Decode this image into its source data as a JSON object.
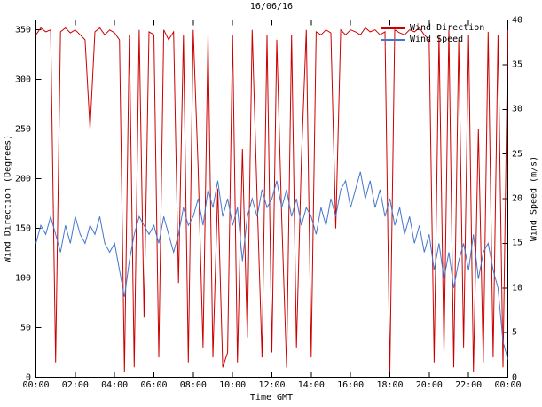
{
  "colors": {
    "background": "#ffffff",
    "border": "#000000",
    "wind_direction": "#cc0000",
    "wind_speed": "#4477cc"
  },
  "chart_data": {
    "type": "line",
    "title": "16/06/16",
    "xlabel": "Time GMT",
    "ylabel_left": "Wind Direction (Degrees)",
    "ylabel_right": "Wind Speed (m/s)",
    "grid": false,
    "legend_position": "top-right",
    "x_range": [
      0,
      24
    ],
    "x_tick_labels": [
      "00:00",
      "02:00",
      "04:00",
      "06:00",
      "08:00",
      "10:00",
      "12:00",
      "14:00",
      "16:00",
      "18:00",
      "20:00",
      "22:00",
      "00:00"
    ],
    "left_axis": {
      "range": [
        0,
        360
      ],
      "ticks": [
        0,
        50,
        100,
        150,
        200,
        250,
        300,
        350
      ]
    },
    "right_axis": {
      "range": [
        0,
        40
      ],
      "ticks": [
        0,
        5,
        10,
        15,
        20,
        25,
        30,
        35,
        40
      ]
    },
    "x_hours": [
      0,
      0.25,
      0.5,
      0.75,
      1,
      1.25,
      1.5,
      1.75,
      2,
      2.25,
      2.5,
      2.75,
      3,
      3.25,
      3.5,
      3.75,
      4,
      4.25,
      4.5,
      4.75,
      5,
      5.25,
      5.5,
      5.75,
      6,
      6.25,
      6.5,
      6.75,
      7,
      7.25,
      7.5,
      7.75,
      8,
      8.25,
      8.5,
      8.75,
      9,
      9.25,
      9.5,
      9.75,
      10,
      10.25,
      10.5,
      10.75,
      11,
      11.25,
      11.5,
      11.75,
      12,
      12.25,
      12.5,
      12.75,
      13,
      13.25,
      13.5,
      13.75,
      14,
      14.25,
      14.5,
      14.75,
      15,
      15.25,
      15.5,
      15.75,
      16,
      16.25,
      16.5,
      16.75,
      17,
      17.25,
      17.5,
      17.75,
      18,
      18.25,
      18.5,
      18.75,
      19,
      19.25,
      19.5,
      19.75,
      20,
      20.25,
      20.5,
      20.75,
      21,
      21.25,
      21.5,
      21.75,
      22,
      22.25,
      22.5,
      22.75,
      23,
      23.25,
      23.5,
      23.75,
      24
    ],
    "series": [
      {
        "name": "Wind Direction",
        "axis": "left",
        "color": "#cc0000",
        "values": [
          345,
          352,
          348,
          350,
          15,
          348,
          352,
          347,
          350,
          345,
          340,
          250,
          348,
          352,
          345,
          350,
          347,
          340,
          5,
          345,
          10,
          350,
          60,
          348,
          345,
          20,
          350,
          340,
          348,
          95,
          345,
          15,
          350,
          210,
          30,
          345,
          20,
          190,
          10,
          25,
          345,
          15,
          230,
          40,
          350,
          180,
          20,
          345,
          25,
          340,
          160,
          10,
          345,
          30,
          220,
          350,
          20,
          348,
          345,
          350,
          347,
          150,
          350,
          345,
          350,
          348,
          345,
          352,
          348,
          350,
          345,
          348,
          5,
          350,
          347,
          345,
          350,
          348,
          352,
          345,
          340,
          15,
          345,
          25,
          350,
          10,
          340,
          30,
          345,
          5,
          250,
          15,
          348,
          20,
          345,
          10,
          350
        ]
      },
      {
        "name": "Wind Speed",
        "axis": "right",
        "color": "#4477cc",
        "values": [
          15,
          17,
          16,
          18,
          16,
          14,
          17,
          15,
          18,
          16,
          15,
          17,
          16,
          18,
          15,
          14,
          15,
          12,
          9,
          13,
          16,
          18,
          17,
          16,
          17,
          15,
          18,
          16,
          14,
          16,
          19,
          17,
          18,
          20,
          17,
          21,
          19,
          22,
          18,
          20,
          17,
          19,
          13,
          18,
          20,
          18,
          21,
          19,
          20,
          22,
          19,
          21,
          18,
          20,
          17,
          19,
          18,
          16,
          19,
          17,
          20,
          18,
          21,
          22,
          19,
          21,
          23,
          20,
          22,
          19,
          21,
          18,
          20,
          17,
          19,
          16,
          18,
          15,
          17,
          14,
          16,
          12,
          15,
          11,
          14,
          10,
          13,
          15,
          12,
          16,
          11,
          14,
          15,
          12,
          10,
          4,
          2
        ]
      }
    ]
  }
}
